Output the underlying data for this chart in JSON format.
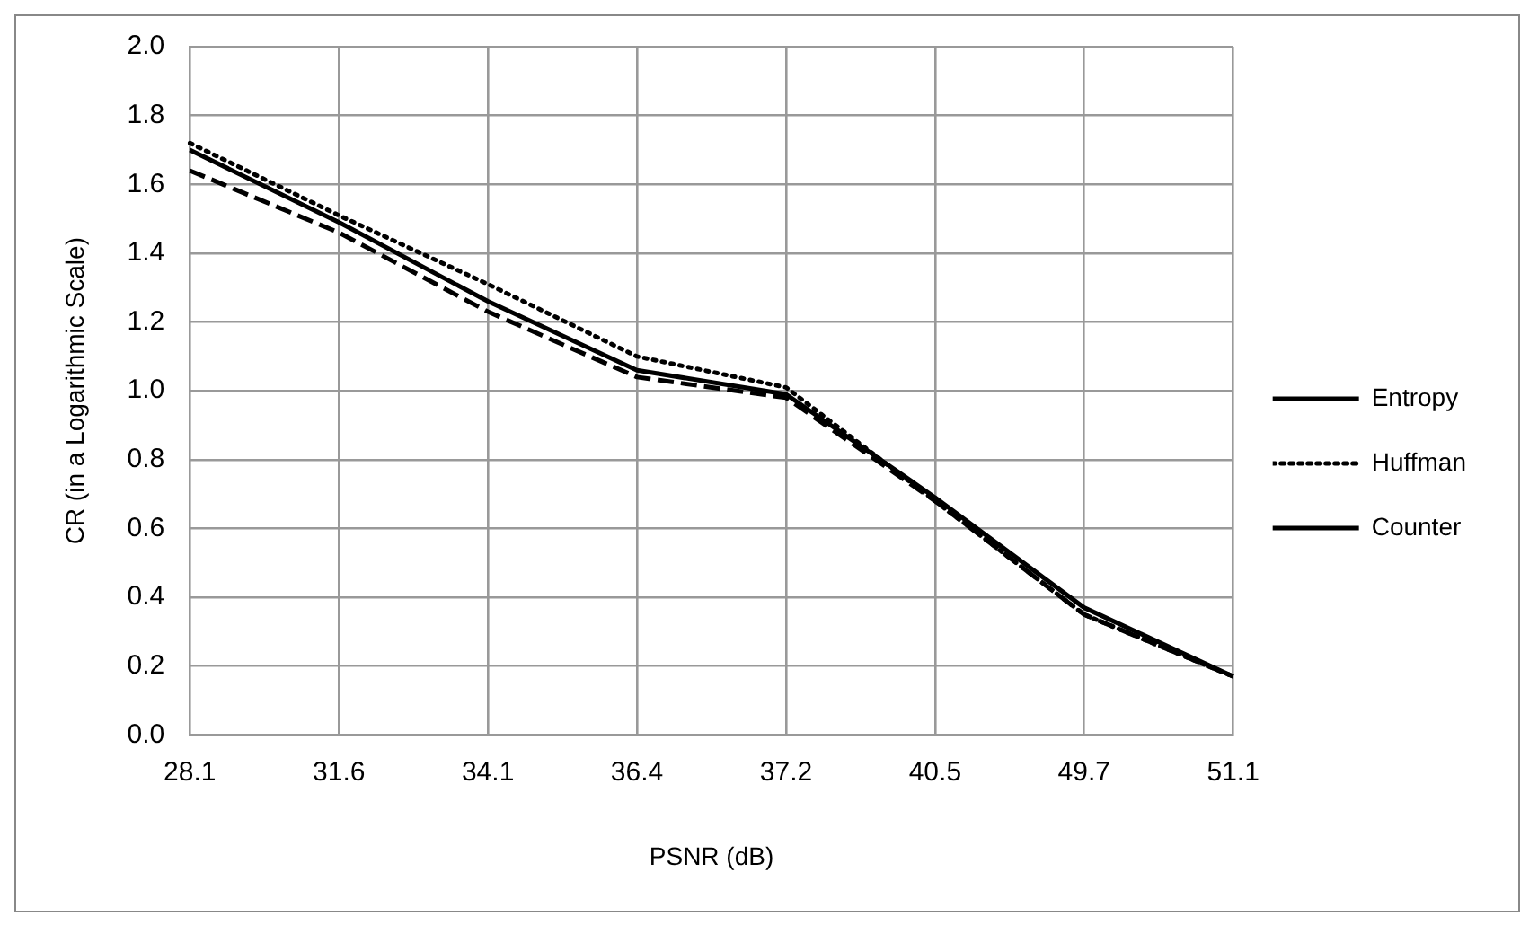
{
  "chart_data": {
    "type": "line",
    "xlabel": "PSNR (dB)",
    "ylabel": "CR (in a Logarithmic Scale)",
    "categories": [
      "28.1",
      "31.6",
      "34.1",
      "36.4",
      "37.2",
      "40.5",
      "49.7",
      "51.1"
    ],
    "series": [
      {
        "name": "Entropy",
        "color": "#000000",
        "line_style": "dashed",
        "values": [
          1.64,
          1.46,
          1.23,
          1.04,
          0.98,
          0.68,
          0.35,
          0.17
        ]
      },
      {
        "name": "Huffman",
        "color": "#000000",
        "line_style": "dotted",
        "values": [
          1.72,
          1.51,
          1.31,
          1.1,
          1.01,
          0.68,
          0.35,
          0.17
        ]
      },
      {
        "name": "Counter",
        "color": "#000000",
        "line_style": "solid",
        "values": [
          1.7,
          1.49,
          1.26,
          1.06,
          0.99,
          0.69,
          0.37,
          0.17
        ]
      }
    ],
    "ylim": [
      0,
      2
    ],
    "yticks": [
      {
        "value": 0,
        "label": "0.0"
      },
      0.2,
      0.4,
      0.6,
      0.8,
      {
        "value": 1,
        "label": "1.0"
      },
      1.2,
      1.4,
      1.6,
      1.8,
      {
        "value": 2,
        "label": "2.0"
      }
    ],
    "grid": true,
    "legend": "right",
    "marker": "none"
  }
}
